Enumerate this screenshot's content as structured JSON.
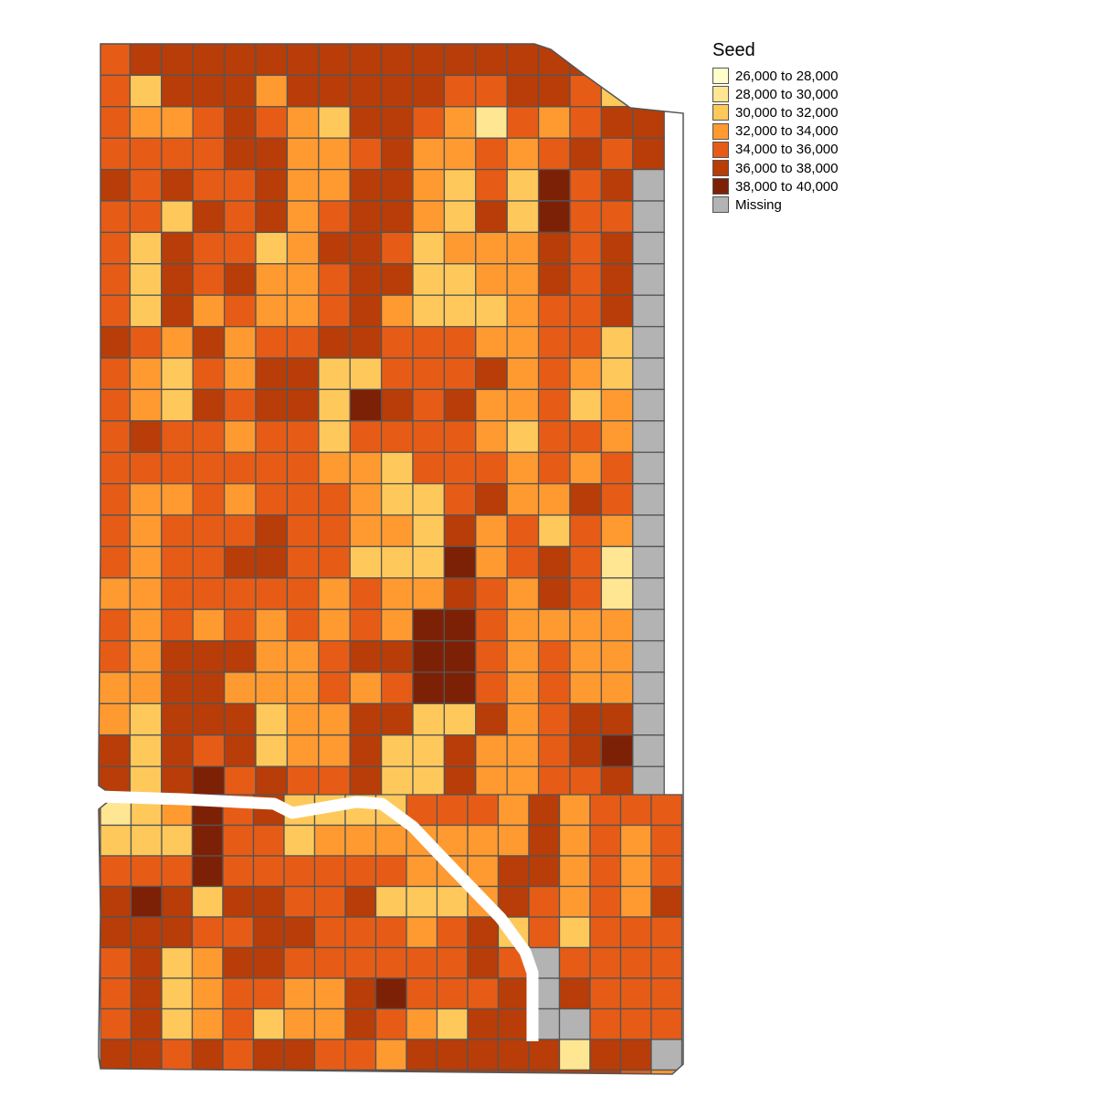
{
  "legend": {
    "title": "Seed",
    "items": [
      {
        "label": "26,000 to 28,000",
        "color": "#FFFFCC"
      },
      {
        "label": "28,000 to 30,000",
        "color": "#FFE693"
      },
      {
        "label": "30,000 to 32,000",
        "color": "#FEC95A"
      },
      {
        "label": "32,000 to 34,000",
        "color": "#FE9A30"
      },
      {
        "label": "34,000 to 36,000",
        "color": "#E65C17"
      },
      {
        "label": "36,000 to 38,000",
        "color": "#B83D08"
      },
      {
        "label": "38,000 to 40,000",
        "color": "#7D2106"
      },
      {
        "label": "Missing",
        "color": "#B3B3B3"
      }
    ]
  },
  "map_data": {
    "field_rows_north": [
      "45555555555555555X",
      "42555355555445542X",
      "433454325543143455",
      "444455334533434545",
      "545445335532426457",
      "442545345532526447",
      "425442355423335457",
      "425453345522335457",
      "425343345322234457",
      "543534455444334427",
      "432435522444534327",
      "432545526545334237",
      "454434424444324437",
      "444444433244434347",
      "433434443224533547",
      "434445443325342437",
      "434455442226345417",
      "334444434335435417",
      "434343434366433337",
      "435553345566434337",
      "335533343466434337",
      "325552335522534557",
      "525452335225334567",
      "525645445225334457",
      "434465435624554437"
    ],
    "field_rows_south": [
      "1236452222444353444",
      "2226442333333353434",
      "4446444444333553434",
      "5652554452223543435",
      "5554455444345242444",
      "4523554444445474444",
      "4523443356444575444",
      "4523423354325577444",
      "5545455443555551557",
      "5544555555555555543"
    ]
  }
}
